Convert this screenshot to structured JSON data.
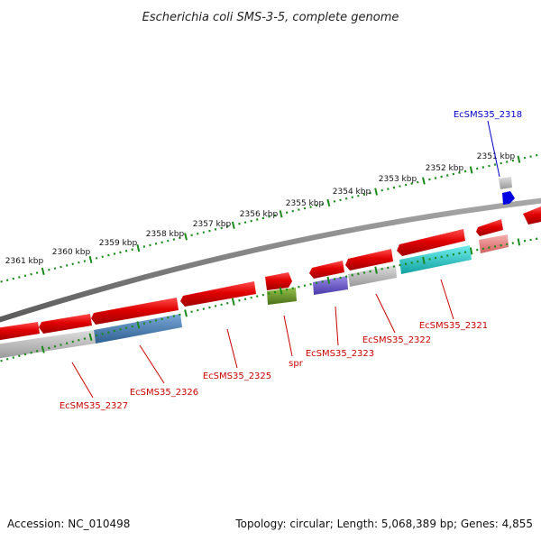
{
  "title": "Escherichia coli SMS-3-5, complete genome",
  "accession": "Accession: NC_010498",
  "summary": "Topology: circular; Length: 5,068,389 bp; Genes: 4,855",
  "kbp_ticks": [
    {
      "label": "2351 kbp",
      "kbp": 2351
    },
    {
      "label": "2352 kbp",
      "kbp": 2352
    },
    {
      "label": "2353 kbp",
      "kbp": 2353
    },
    {
      "label": "2354 kbp",
      "kbp": 2354
    },
    {
      "label": "2355 kbp",
      "kbp": 2355
    },
    {
      "label": "2356 kbp",
      "kbp": 2356
    },
    {
      "label": "2357 kbp",
      "kbp": 2357
    },
    {
      "label": "2358 kbp",
      "kbp": 2358
    },
    {
      "label": "2359 kbp",
      "kbp": 2359
    },
    {
      "label": "2360 kbp",
      "kbp": 2360
    },
    {
      "label": "2361 kbp",
      "kbp": 2361
    }
  ],
  "gene_labels": [
    {
      "text": "EcSMS35_2318",
      "color": "#0000cc"
    },
    {
      "text": "EcSMS35_2321",
      "color": "#cc0000"
    },
    {
      "text": "EcSMS35_2322",
      "color": "#cc0000"
    },
    {
      "text": "EcSMS35_2323",
      "color": "#cc0000"
    },
    {
      "text": "spr",
      "color": "#cc0000"
    },
    {
      "text": "EcSMS35_2325",
      "color": "#cc0000"
    },
    {
      "text": "EcSMS35_2326",
      "color": "#cc0000"
    },
    {
      "text": "EcSMS35_2327",
      "color": "#cc0000"
    }
  ],
  "colors": {
    "gene": "#e00000",
    "backbone": "#808080",
    "tick": "#1a8a1a",
    "cds_grey": "#b8b8b8",
    "cds_blue": "#4a84b8",
    "cds_green": "#6a9a2a",
    "cds_purple": "#6a5ac8",
    "cds_cyan": "#18c8c8",
    "cds_pink": "#e88a8a",
    "tag_blue": "#0000e0"
  }
}
